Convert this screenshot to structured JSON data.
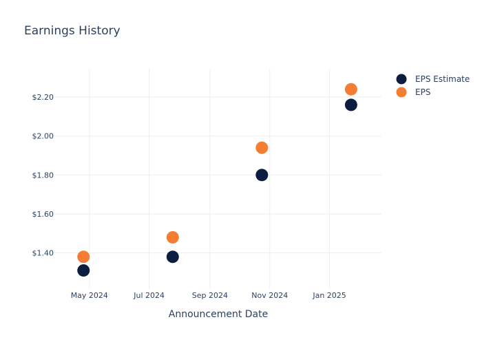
{
  "colors": {
    "estimate": "#0b1e3f",
    "actual": "#f47c33",
    "text": "#2a3f5f",
    "grid": "#eeeeee"
  },
  "chart_data": {
    "type": "scatter",
    "title": "Earnings History",
    "xlabel": "Announcement Date",
    "ylabel": "",
    "x_ticks": [
      "May 2024",
      "Jul 2024",
      "Sep 2024",
      "Nov 2024",
      "Jan 2025"
    ],
    "y_ticks": [
      "$1.40",
      "$1.60",
      "$1.80",
      "$2.00",
      "$2.20"
    ],
    "y_tick_values": [
      1.4,
      1.6,
      1.8,
      2.0,
      2.2
    ],
    "ylim": [
      1.215,
      2.345
    ],
    "grid": true,
    "legend_position": "top-right",
    "categories": [
      "2024-04-25",
      "2024-07-25",
      "2024-10-24",
      "2025-01-23"
    ],
    "series": [
      {
        "name": "EPS Estimate",
        "values": [
          1.31,
          1.38,
          1.8,
          2.16
        ]
      },
      {
        "name": "EPS",
        "values": [
          1.38,
          1.48,
          1.94,
          2.24
        ]
      }
    ]
  }
}
